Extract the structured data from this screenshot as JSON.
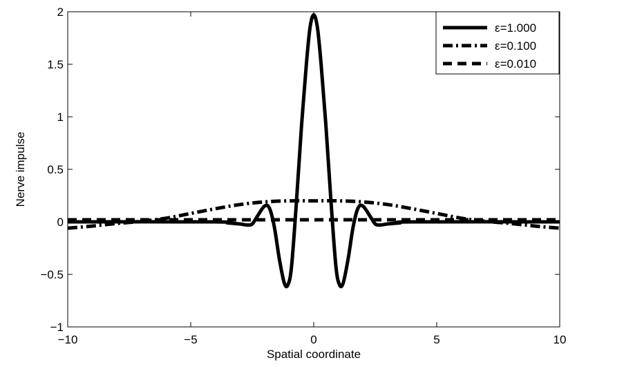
{
  "chart_data": {
    "type": "line",
    "title": "",
    "xlabel": "Spatial coordinate",
    "ylabel": "Nerve impulse",
    "xlim": [
      -10,
      10
    ],
    "ylim": [
      -1,
      2
    ],
    "xticks": [
      -10,
      -5,
      0,
      5,
      10
    ],
    "xtick_labels": [
      "−10",
      "−5",
      "0",
      "5",
      "10"
    ],
    "yticks": [
      -1,
      -0.5,
      0,
      0.5,
      1,
      1.5,
      2
    ],
    "ytick_labels": [
      "−1",
      "−0.5",
      "0",
      "0.5",
      "1",
      "1.5",
      "2"
    ],
    "grid": false,
    "legend_position": "top-right",
    "series": [
      {
        "name": "ε=1.000",
        "style": "solid",
        "color": "#000000",
        "x": [
          -10,
          -4,
          -3.5,
          -3,
          -2.7,
          -2.5,
          -2.3,
          -2,
          -1.8,
          -1.6,
          -1.4,
          -1.2,
          -1.05,
          -0.9,
          -0.7,
          -0.5,
          -0.3,
          -0.15,
          0,
          0.15,
          0.3,
          0.5,
          0.7,
          0.9,
          1.05,
          1.2,
          1.4,
          1.6,
          1.8,
          2,
          2.3,
          2.5,
          2.7,
          3,
          3.5,
          4,
          10
        ],
        "y": [
          0,
          0,
          -0.01,
          -0.02,
          -0.03,
          -0.02,
          0.05,
          0.15,
          0.13,
          -0.05,
          -0.35,
          -0.58,
          -0.6,
          -0.42,
          0.2,
          0.9,
          1.5,
          1.85,
          1.97,
          1.85,
          1.5,
          0.9,
          0.2,
          -0.42,
          -0.6,
          -0.58,
          -0.35,
          -0.05,
          0.13,
          0.15,
          0.05,
          -0.02,
          -0.03,
          -0.02,
          -0.01,
          0,
          0
        ]
      },
      {
        "name": "ε=0.100",
        "style": "dashdot",
        "color": "#000000",
        "x": [
          -10,
          -9,
          -8,
          -7,
          -6,
          -5,
          -4,
          -3,
          -2,
          -1,
          0,
          1,
          2,
          3,
          4,
          5,
          6,
          7,
          8,
          9,
          10
        ],
        "y": [
          -0.06,
          -0.04,
          -0.015,
          0.005,
          0.035,
          0.08,
          0.125,
          0.165,
          0.19,
          0.2,
          0.2,
          0.2,
          0.19,
          0.165,
          0.125,
          0.08,
          0.035,
          0.005,
          -0.015,
          -0.04,
          -0.06
        ]
      },
      {
        "name": "ε=0.010",
        "style": "dashed",
        "color": "#000000",
        "x": [
          -10,
          10
        ],
        "y": [
          0.02,
          0.02
        ]
      }
    ]
  }
}
